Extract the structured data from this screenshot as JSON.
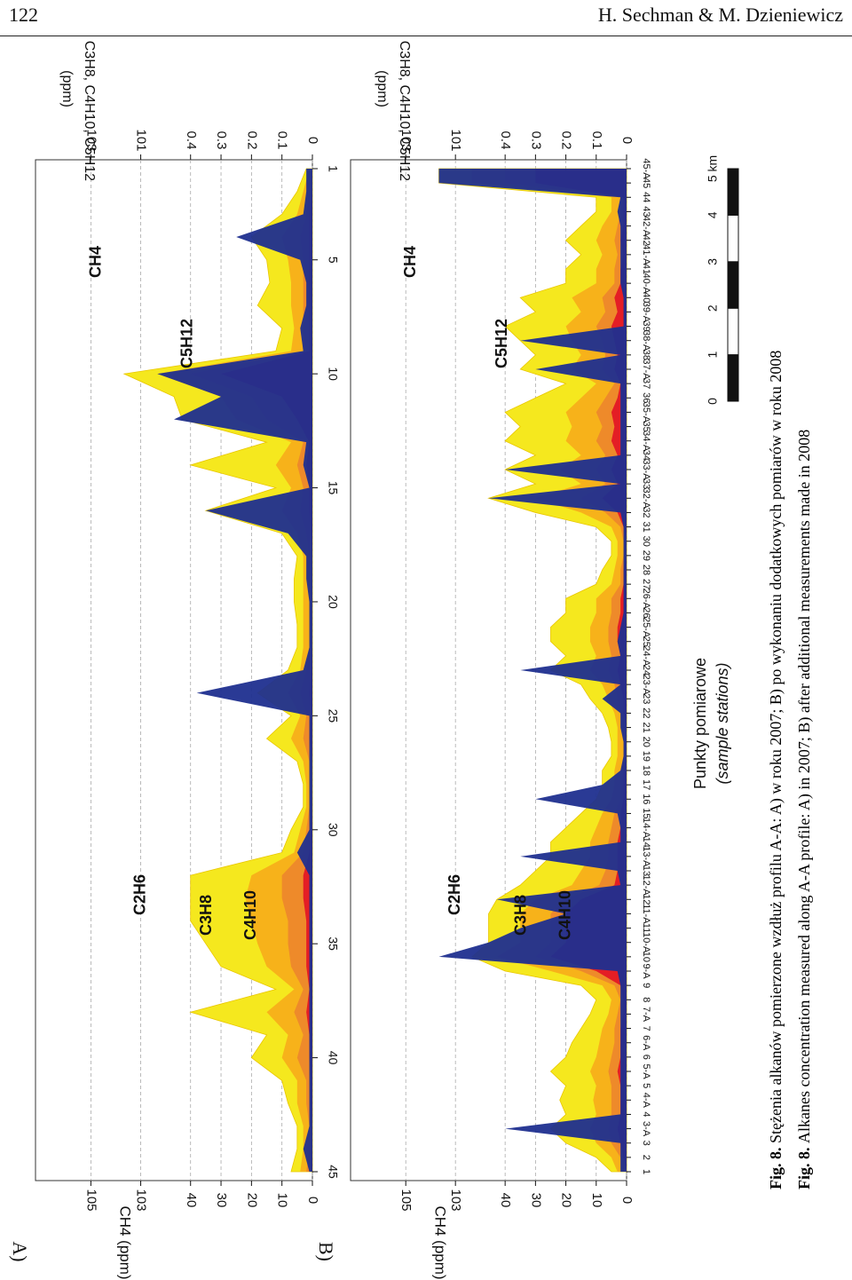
{
  "header": {
    "page_number": "122",
    "authors": "H. Sechman & M. Dzieniewicz"
  },
  "panels": [
    {
      "label": "A)",
      "left_axis_label": "CH4 (ppm)",
      "right_axis_label": "C2H6, C3H8, C4H10, C5H12",
      "right_axis_unit": "(ppm)"
    },
    {
      "label": "B)",
      "left_axis_label": "CH4 (ppm)",
      "right_axis_label": "C2H6, C3H8, C4H10, C5H12",
      "right_axis_unit": "(ppm)"
    }
  ],
  "ch4_axis_ticks": [
    "0",
    "10",
    "20",
    "30",
    "40",
    "10^3",
    "10^5"
  ],
  "c_axis_ticks": [
    "0",
    "0.1",
    "0.2",
    "0.3",
    "0.4",
    "10^1",
    "10^3"
  ],
  "x_axis_title": "Punkty pomiarowe",
  "x_axis_subtitle": "(sample stations)",
  "scale_bar": {
    "labels": [
      "0",
      "1",
      "2",
      "3",
      "4",
      "5 km"
    ]
  },
  "caption_pl_bold": "Fig. 8.",
  "caption_pl": "Stężenia alkanów pomierzone wzdłuż profilu A-A: A) w roku 2007; B) po wykonaniu dodatkowych pomiarów w roku 2008",
  "caption_en_bold": "Fig. 8.",
  "caption_en": "Alkanes concentration measured along A-A profile: A) in 2007; B) after additional measurements made in 2008",
  "colors": {
    "CH4": "#1f2f8f",
    "C2H6": "#f5e81e",
    "C3H8": "#f7b21a",
    "C4H10": "#ee8a2a",
    "C5H12": "#e41e25"
  },
  "chart_data": [
    {
      "type": "area",
      "panel": "A)",
      "x": [
        1,
        2,
        3,
        4,
        5,
        6,
        7,
        8,
        9,
        10,
        11,
        12,
        13,
        14,
        15,
        16,
        17,
        18,
        19,
        20,
        21,
        22,
        23,
        24,
        25,
        26,
        27,
        28,
        29,
        30,
        31,
        32,
        33,
        34,
        35,
        36,
        37,
        38,
        39,
        40,
        41,
        42,
        43,
        44,
        45
      ],
      "x_tick_labels": [
        "1",
        "5",
        "10",
        "15",
        "20",
        "25",
        "30",
        "35",
        "40",
        "45"
      ],
      "series": [
        {
          "name": "CH4",
          "axis": "left",
          "values": [
            2,
            2,
            3,
            25,
            4,
            2,
            2,
            4,
            3,
            60,
            30,
            50,
            2,
            3,
            1,
            35,
            8,
            2,
            2,
            1,
            1,
            1,
            3,
            38,
            1,
            1,
            1,
            1,
            1,
            1,
            5,
            1,
            1,
            1,
            1,
            1,
            1,
            1,
            1,
            1,
            1,
            1,
            1,
            3,
            1
          ]
        },
        {
          "name": "C2H6",
          "axis": "right",
          "values": [
            0.02,
            0.05,
            0.1,
            0.2,
            0.15,
            0.14,
            0.18,
            0.1,
            0.12,
            0.8,
            0.5,
            0.45,
            0.15,
            0.4,
            0.12,
            0.35,
            0.1,
            0.05,
            0.06,
            0.06,
            0.05,
            0.05,
            0.08,
            0.18,
            0.07,
            0.15,
            0.05,
            0.03,
            0.03,
            0.07,
            0.1,
            0.4,
            0.4,
            0.4,
            0.35,
            0.3,
            0.12,
            0.4,
            0.15,
            0.2,
            0.1,
            0.08,
            0.05,
            0.05,
            0.07
          ]
        },
        {
          "name": "C3H8",
          "axis": "right",
          "values": [
            0.01,
            0.03,
            0.05,
            0.1,
            0.08,
            0.07,
            0.07,
            0.06,
            0.07,
            0.6,
            0.3,
            0.25,
            0.07,
            0.12,
            0.07,
            0.1,
            0.05,
            0.03,
            0.03,
            0.03,
            0.03,
            0.03,
            0.04,
            0.08,
            0.04,
            0.07,
            0.03,
            0.02,
            0.02,
            0.04,
            0.06,
            0.2,
            0.22,
            0.2,
            0.18,
            0.15,
            0.06,
            0.15,
            0.08,
            0.1,
            0.05,
            0.05,
            0.03,
            0.03,
            0.04
          ]
        },
        {
          "name": "C4H10",
          "axis": "right",
          "values": [
            0.005,
            0.01,
            0.02,
            0.04,
            0.03,
            0.03,
            0.03,
            0.03,
            0.03,
            0.4,
            0.2,
            0.15,
            0.03,
            0.05,
            0.03,
            0.04,
            0.02,
            0.01,
            0.01,
            0.01,
            0.01,
            0.01,
            0.02,
            0.04,
            0.02,
            0.03,
            0.01,
            0.01,
            0.01,
            0.02,
            0.03,
            0.1,
            0.1,
            0.08,
            0.08,
            0.07,
            0.03,
            0.06,
            0.03,
            0.05,
            0.02,
            0.02,
            0.01,
            0.01,
            0.02
          ]
        },
        {
          "name": "C5H12",
          "axis": "right",
          "values": [
            0,
            0,
            0.01,
            0.01,
            0.01,
            0.01,
            0.01,
            0.01,
            0.01,
            0.3,
            0.1,
            0.05,
            0.01,
            0.02,
            0.01,
            0.01,
            0.005,
            0,
            0,
            0,
            0,
            0,
            0.005,
            0.01,
            0.005,
            0.01,
            0,
            0,
            0,
            0.005,
            0.01,
            0.03,
            0.03,
            0.02,
            0.02,
            0.02,
            0.01,
            0.02,
            0.01,
            0.01,
            0.005,
            0.005,
            0,
            0,
            0.005
          ]
        }
      ]
    },
    {
      "type": "area",
      "panel": "B)",
      "x_tick_labels": [
        "45-A",
        "45",
        "44",
        "43",
        "42-A",
        "42",
        "41-A",
        "41",
        "40-A",
        "40",
        "39-A",
        "39",
        "38-A",
        "38",
        "37-A",
        "37",
        "36",
        "35-A",
        "35",
        "34-A",
        "34",
        "33-A",
        "33",
        "32-A",
        "32",
        "31",
        "30",
        "29",
        "28",
        "27",
        "26-A",
        "26",
        "25-A",
        "25",
        "24-A",
        "24",
        "23-A",
        "23",
        "22",
        "21",
        "20",
        "19",
        "18",
        "17",
        "16",
        "15",
        "14-A",
        "14",
        "13-A",
        "13",
        "12-A",
        "12",
        "11-A",
        "11",
        "10-A",
        "10",
        "9-A",
        "9",
        "8",
        "7-A",
        "7",
        "6-A",
        "6",
        "5-A",
        "5",
        "4-A",
        "4",
        "3-A",
        "3",
        "2",
        "1"
      ],
      "x": [
        1,
        2,
        3,
        4,
        5,
        6,
        7,
        8,
        9,
        10,
        11,
        12,
        13,
        14,
        15,
        16,
        17,
        18,
        19,
        20,
        21,
        22,
        23,
        24,
        25,
        26,
        27,
        28,
        29,
        30,
        31,
        32,
        33,
        34,
        35,
        36,
        37,
        38,
        39,
        40,
        41,
        42,
        43,
        44,
        45,
        46,
        47,
        48,
        49,
        50,
        51,
        52,
        53,
        54,
        55,
        56,
        57,
        58,
        59,
        60,
        61,
        62,
        63,
        64,
        65,
        66,
        67,
        68,
        69,
        70,
        71
      ],
      "series": [
        {
          "name": "CH4",
          "axis": "left",
          "values": [
            80,
            80,
            2,
            3,
            2,
            2,
            2,
            2,
            2,
            1,
            1,
            1,
            35,
            2,
            30,
            2,
            2,
            2,
            2,
            2,
            2,
            40,
            2,
            50,
            2,
            1,
            1,
            1,
            1,
            1,
            1,
            1,
            2,
            3,
            2,
            35,
            2,
            8,
            2,
            2,
            1,
            1,
            2,
            8,
            30,
            3,
            2,
            2,
            35,
            3,
            2,
            45,
            20,
            35,
            50,
            80,
            3,
            2,
            2,
            2,
            2,
            2,
            2,
            2,
            2,
            2,
            2,
            40,
            2,
            2,
            2
          ]
        },
        {
          "name": "C2H6",
          "axis": "right",
          "values": [
            0.8,
            0.8,
            0.1,
            0.1,
            0.15,
            0.2,
            0.15,
            0.2,
            0.2,
            0.35,
            0.3,
            0.4,
            0.35,
            0.3,
            0.35,
            0.2,
            0.3,
            0.4,
            0.35,
            0.4,
            0.3,
            0.4,
            0.3,
            0.5,
            0.3,
            0.1,
            0.05,
            0.05,
            0.08,
            0.1,
            0.2,
            0.2,
            0.25,
            0.25,
            0.2,
            0.25,
            0.15,
            0.12,
            0.08,
            0.06,
            0.05,
            0.05,
            0.08,
            0.08,
            0.1,
            0.15,
            0.2,
            0.25,
            0.25,
            0.3,
            0.35,
            0.45,
            0.5,
            0.5,
            0.5,
            0.6,
            0.4,
            0.15,
            0.1,
            0.12,
            0.15,
            0.18,
            0.2,
            0.25,
            0.2,
            0.22,
            0.2,
            0.25,
            0.2,
            0.1,
            0.05
          ]
        },
        {
          "name": "C3H8",
          "axis": "right",
          "values": [
            0.6,
            0.6,
            0.05,
            0.05,
            0.08,
            0.1,
            0.08,
            0.1,
            0.1,
            0.18,
            0.15,
            0.2,
            0.18,
            0.15,
            0.18,
            0.1,
            0.15,
            0.2,
            0.18,
            0.2,
            0.15,
            0.22,
            0.15,
            0.3,
            0.15,
            0.05,
            0.03,
            0.03,
            0.04,
            0.05,
            0.1,
            0.1,
            0.12,
            0.12,
            0.1,
            0.12,
            0.08,
            0.06,
            0.04,
            0.03,
            0.03,
            0.03,
            0.04,
            0.04,
            0.05,
            0.08,
            0.1,
            0.12,
            0.12,
            0.15,
            0.18,
            0.3,
            0.35,
            0.35,
            0.35,
            0.45,
            0.25,
            0.08,
            0.05,
            0.06,
            0.08,
            0.09,
            0.1,
            0.12,
            0.1,
            0.11,
            0.1,
            0.12,
            0.1,
            0.05,
            0.03
          ]
        },
        {
          "name": "C4H10",
          "axis": "right",
          "values": [
            0.4,
            0.4,
            0.02,
            0.02,
            0.03,
            0.04,
            0.03,
            0.04,
            0.04,
            0.08,
            0.07,
            0.1,
            0.08,
            0.07,
            0.08,
            0.04,
            0.07,
            0.1,
            0.08,
            0.1,
            0.07,
            0.1,
            0.07,
            0.15,
            0.07,
            0.02,
            0.01,
            0.01,
            0.02,
            0.02,
            0.05,
            0.05,
            0.06,
            0.06,
            0.05,
            0.06,
            0.04,
            0.03,
            0.02,
            0.01,
            0.01,
            0.01,
            0.02,
            0.02,
            0.02,
            0.04,
            0.05,
            0.06,
            0.06,
            0.07,
            0.09,
            0.2,
            0.25,
            0.25,
            0.25,
            0.3,
            0.15,
            0.04,
            0.02,
            0.03,
            0.04,
            0.04,
            0.05,
            0.06,
            0.05,
            0.05,
            0.05,
            0.06,
            0.05,
            0.02,
            0.01
          ]
        },
        {
          "name": "C5H12",
          "axis": "right",
          "values": [
            0.3,
            0.3,
            0.01,
            0.01,
            0.01,
            0.02,
            0.01,
            0.02,
            0.02,
            0.04,
            0.03,
            0.05,
            0.04,
            0.03,
            0.04,
            0.02,
            0.03,
            0.05,
            0.04,
            0.05,
            0.03,
            0.05,
            0.03,
            0.08,
            0.03,
            0.01,
            0,
            0,
            0.01,
            0.01,
            0.02,
            0.02,
            0.03,
            0.03,
            0.02,
            0.03,
            0.02,
            0.01,
            0.01,
            0,
            0,
            0,
            0.01,
            0.01,
            0.01,
            0.02,
            0.02,
            0.03,
            0.03,
            0.03,
            0.04,
            0.15,
            0.2,
            0.2,
            0.2,
            0.25,
            0.1,
            0.02,
            0.01,
            0.01,
            0.02,
            0.02,
            0.02,
            0.03,
            0.02,
            0.02,
            0.02,
            0.03,
            0.02,
            0.01,
            0
          ]
        }
      ]
    }
  ]
}
